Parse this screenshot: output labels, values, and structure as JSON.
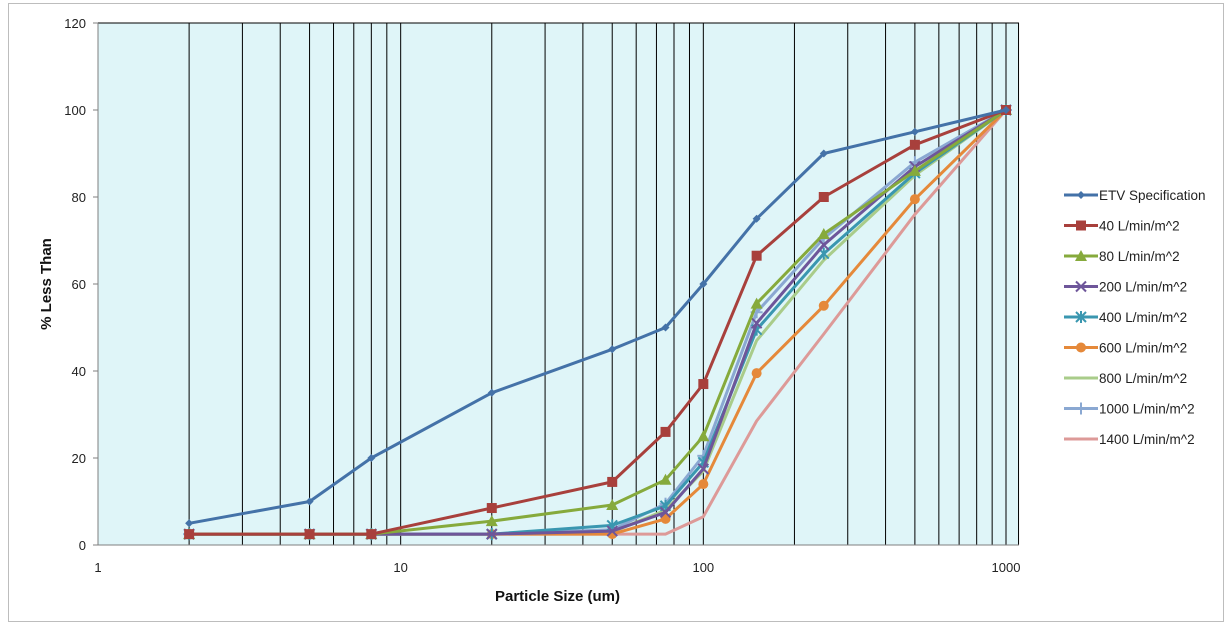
{
  "chart_data": {
    "type": "line",
    "title": "",
    "xlabel": "Particle Size (um)",
    "ylabel": "% Less Than",
    "x_scale": "log",
    "xlim": [
      1,
      1100
    ],
    "ylim": [
      0,
      120
    ],
    "x_ticks": [
      1,
      10,
      100,
      1000
    ],
    "x_tick_labels": [
      "1",
      "10",
      "100",
      "1000"
    ],
    "y_ticks": [
      0,
      20,
      40,
      60,
      80,
      100,
      120
    ],
    "y_tick_labels": [
      "0",
      "20",
      "40",
      "60",
      "80",
      "100",
      "120"
    ],
    "grid": "vertical minor log gridlines",
    "plot_background": "#dff5f8",
    "legend_position": "right",
    "series": [
      {
        "name": "ETV Specification",
        "color": "#4472a8",
        "marker": "diamond",
        "x": [
          2,
          5,
          8,
          20,
          50,
          75,
          100,
          150,
          250,
          500,
          1000
        ],
        "y": [
          5,
          10,
          20,
          35,
          45,
          50,
          60,
          75,
          90,
          95,
          100
        ]
      },
      {
        "name": "40 L/min/m^2",
        "color": "#a8403c",
        "marker": "square",
        "x": [
          2,
          5,
          8,
          20,
          50,
          75,
          100,
          150,
          250,
          500,
          1000
        ],
        "y": [
          2.5,
          2.5,
          2.5,
          8.5,
          14.5,
          26,
          37,
          66.5,
          80,
          92,
          100
        ]
      },
      {
        "name": "80 L/min/m^2",
        "color": "#86aa3c",
        "marker": "triangle",
        "x": [
          2,
          5,
          8,
          20,
          50,
          75,
          100,
          150,
          250,
          500,
          1000
        ],
        "y": [
          2.5,
          2.5,
          2.5,
          5.5,
          9.2,
          15,
          25,
          55.5,
          71.5,
          86,
          100
        ]
      },
      {
        "name": "200 L/min/m^2",
        "color": "#6e569a",
        "marker": "x",
        "x": [
          2,
          5,
          8,
          20,
          50,
          75,
          100,
          150,
          250,
          500,
          1000
        ],
        "y": [
          2.5,
          2.5,
          2.5,
          2.5,
          3.2,
          7.5,
          17.5,
          51,
          69,
          87,
          100
        ]
      },
      {
        "name": "400 L/min/m^2",
        "color": "#3a97b0",
        "marker": "star",
        "x": [
          2,
          5,
          8,
          20,
          50,
          75,
          100,
          150,
          250,
          500,
          1000
        ],
        "y": [
          2.5,
          2.5,
          2.5,
          2.5,
          4.5,
          9,
          19,
          49.5,
          67,
          85.5,
          100
        ]
      },
      {
        "name": "600 L/min/m^2",
        "color": "#e5893a",
        "marker": "circle",
        "x": [
          2,
          5,
          8,
          20,
          50,
          75,
          100,
          150,
          250,
          500,
          1000
        ],
        "y": [
          2.5,
          2.5,
          2.5,
          2.5,
          2.5,
          6,
          14,
          39.5,
          55,
          79.5,
          100
        ]
      },
      {
        "name": "800 L/min/m^2",
        "color": "#a9cc8a",
        "marker": "none",
        "x": [
          2,
          5,
          8,
          20,
          50,
          75,
          100,
          150,
          250,
          500,
          1000
        ],
        "y": [
          2.5,
          2.5,
          2.5,
          2.5,
          3,
          8,
          17,
          47,
          65.5,
          85,
          100
        ]
      },
      {
        "name": "1000 L/min/m^2",
        "color": "#8aa8d2",
        "marker": "plus",
        "x": [
          2,
          5,
          8,
          20,
          50,
          75,
          100,
          150,
          250,
          500,
          1000
        ],
        "y": [
          2.5,
          2.5,
          2.5,
          2.5,
          3.5,
          9.5,
          20.5,
          53.5,
          70.5,
          88,
          100
        ]
      },
      {
        "name": "1400 L/min/m^2",
        "color": "#dd9a98",
        "marker": "none",
        "x": [
          2,
          5,
          8,
          20,
          50,
          75,
          100,
          150,
          250,
          500,
          1000
        ],
        "y": [
          2.5,
          2.5,
          2.5,
          2.5,
          2.5,
          2.5,
          6.5,
          28.5,
          48.5,
          76,
          100
        ]
      }
    ]
  }
}
